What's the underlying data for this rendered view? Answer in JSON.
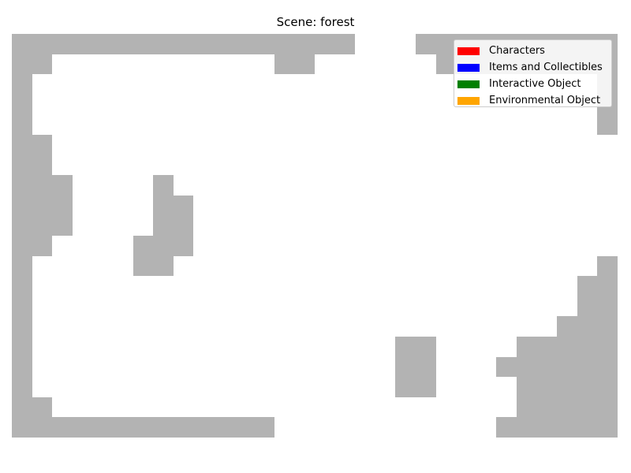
{
  "title": "Scene: forest",
  "legend": [
    {
      "label": "Characters",
      "color": "#ff0000"
    },
    {
      "label": "Items and Collectibles",
      "color": "#0000ff"
    },
    {
      "label": "Interactive Object",
      "color": "#008000"
    },
    {
      "label": "Environmental Object",
      "color": "#ffa500"
    }
  ],
  "tile_color": "#b3b3b3"
}
